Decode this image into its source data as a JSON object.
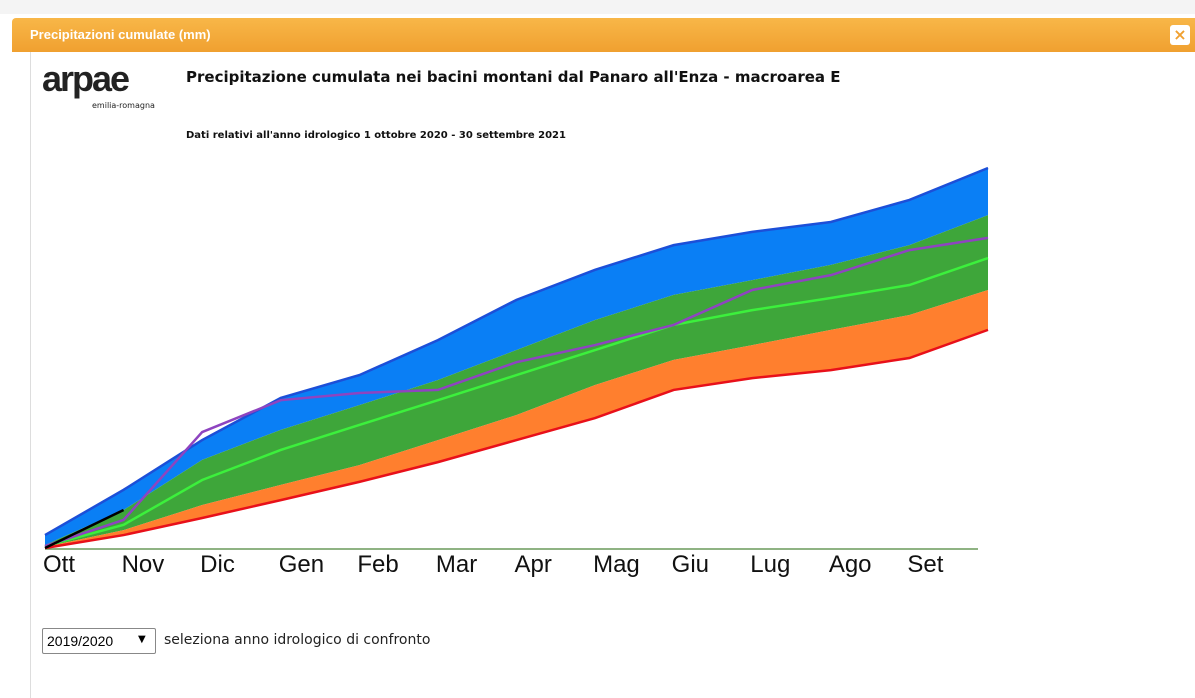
{
  "ui": {
    "header": "Precipitazioni cumulate (mm)",
    "close": "×",
    "logo": "arpae",
    "logo_sub": "emilia-romagna",
    "select_value": "2019/2020",
    "select_arrow": "▼",
    "select_label": "seleziona anno idrologico di confronto"
  },
  "chart_data": {
    "type": "area",
    "title": "Precipitazione cumulata nei bacini montani dal Panaro all'Enza - macroarea E",
    "subtitle": "Dati relativi all'anno idrologico 1 ottobre 2020 - 30 settembre 2021",
    "categories": [
      "Ott",
      "Nov",
      "Dic",
      "Gen",
      "Feb",
      "Mar",
      "Apr",
      "Mag",
      "Giu",
      "Lug",
      "Ago",
      "Set",
      null
    ],
    "ylim": [
      0,
      100
    ],
    "series": [
      {
        "color": "#1c4fd8",
        "fill": "#0a7ff5",
        "values": [
          3.4,
          15.3,
          28.4,
          39.5,
          45.5,
          54.7,
          65.3,
          73.2,
          79.7,
          83.2,
          85.8,
          91.6,
          100
        ]
      },
      {
        "fill": "#3ea63a",
        "values": [
          0.8,
          10,
          23.2,
          31.1,
          37.6,
          44.2,
          52.1,
          60,
          66.6,
          70.5,
          74.5,
          79.7,
          87.6
        ]
      },
      {
        "fill": "#ff7f2e",
        "values": [
          0.3,
          4.7,
          11.3,
          16.6,
          21.8,
          28.4,
          35,
          42.9,
          49.5,
          53.4,
          57.4,
          61.3,
          67.9
        ]
      },
      {
        "color": "#e8101a",
        "values": [
          0,
          3.4,
          7.9,
          12.6,
          17.4,
          22.6,
          28.4,
          34.2,
          41.6,
          44.7,
          46.8,
          50,
          57.4
        ]
      },
      {
        "color": "#3cf03c",
        "values": [
          0.5,
          6.1,
          17.9,
          25.8,
          32.4,
          38.9,
          45.5,
          52.1,
          58.7,
          62.6,
          65.8,
          69.2,
          76.3
        ]
      },
      {
        "color": "#8e44c0",
        "values": [
          0.5,
          7.4,
          30.5,
          38.9,
          40.8,
          41.6,
          48.9,
          53.4,
          58.7,
          67.9,
          71.8,
          78.4,
          81.6
        ]
      },
      {
        "color": "#000000",
        "values": [
          0,
          10,
          null,
          null,
          null,
          null,
          null,
          null,
          null,
          null,
          null,
          null,
          null
        ]
      }
    ]
  }
}
